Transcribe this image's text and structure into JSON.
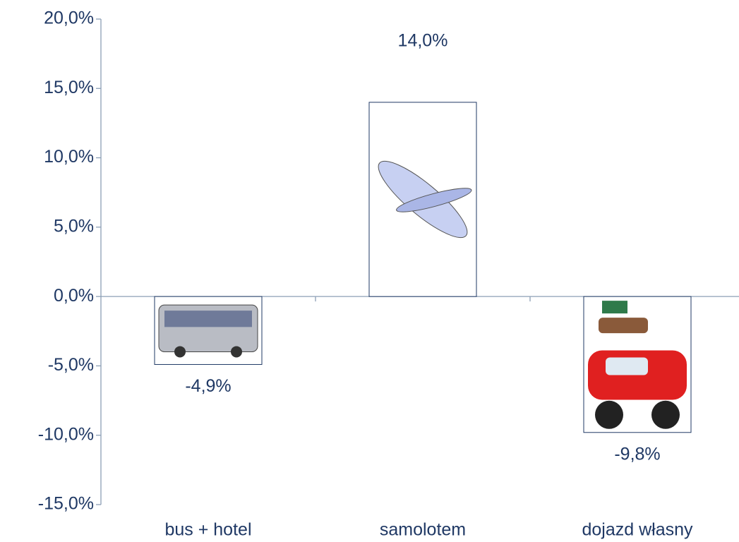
{
  "chart_data": {
    "type": "bar",
    "categories": [
      "bus + hotel",
      "samolotem",
      "dojazd własny"
    ],
    "values": [
      -4.9,
      14.0,
      -9.8
    ],
    "value_labels": [
      "-4,9%",
      "14,0%",
      "-9,8%"
    ],
    "color": "#ffffff",
    "ylim": [
      -15,
      20
    ],
    "yticks": [
      {
        "value": -15,
        "label": "-15,0%"
      },
      {
        "value": -10,
        "label": "-10,0%"
      },
      {
        "value": -5,
        "label": "-5,0%"
      },
      {
        "value": 0,
        "label": "0,0%"
      },
      {
        "value": 5,
        "label": "5,0%"
      },
      {
        "value": 10,
        "label": "10,0%"
      },
      {
        "value": 15,
        "label": "15,0%"
      },
      {
        "value": 20,
        "label": "20,0%"
      }
    ],
    "grid": false
  }
}
